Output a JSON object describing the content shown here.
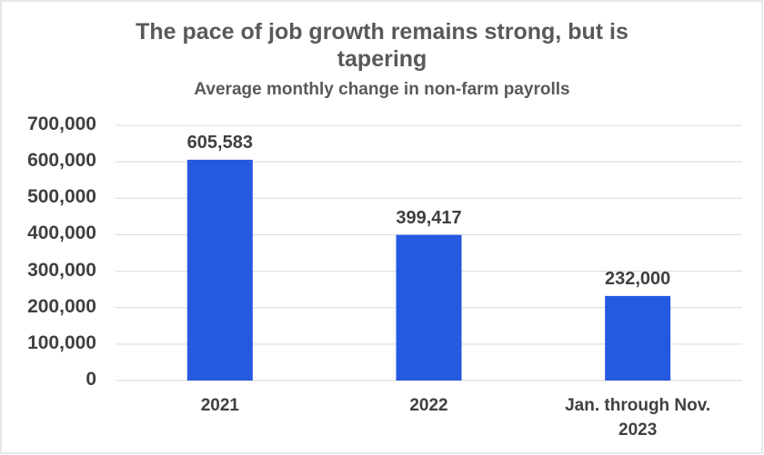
{
  "chart_data": {
    "type": "bar",
    "title": "The pace of job growth remains strong, but is tapering",
    "subtitle": "Average monthly change in non-farm payrolls",
    "categories": [
      "2021",
      "2022",
      "Jan. through Nov. 2023"
    ],
    "values": [
      605583,
      399417,
      232000
    ],
    "value_labels": [
      "605,583",
      "399,417",
      "232,000"
    ],
    "color": "#2459e0",
    "ylim": [
      0,
      700000
    ],
    "yticks": [
      0,
      {
        "value": 100000,
        "label": "100,000"
      },
      {
        "value": 200000,
        "label": "200,000"
      },
      {
        "value": 300000,
        "label": "300,000"
      },
      {
        "value": 400000,
        "label": "400,000"
      },
      {
        "value": 500000,
        "label": "500,000"
      },
      {
        "value": 600000,
        "label": "600,000"
      },
      {
        "value": 700000,
        "label": "700,000"
      }
    ],
    "grid": true
  }
}
